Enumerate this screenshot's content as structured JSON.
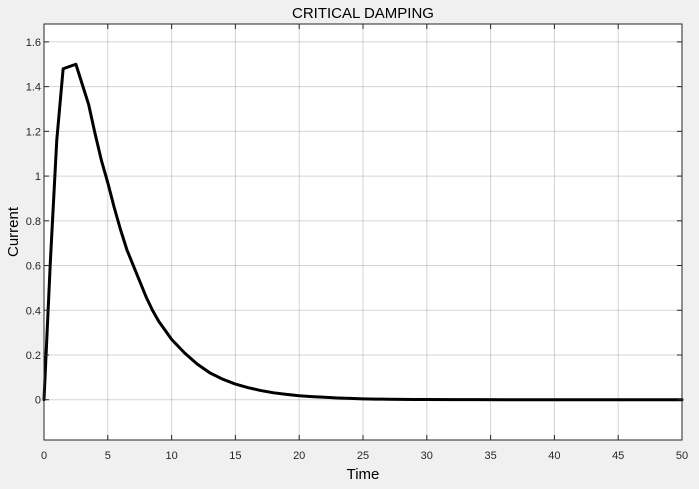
{
  "chart_data": {
    "type": "line",
    "title": "CRITICAL DAMPING",
    "xlabel": "Time",
    "ylabel": "Current",
    "xlim": [
      0,
      50
    ],
    "ylim": [
      -0.18,
      1.68
    ],
    "grid": true,
    "xticks": [
      "0",
      "5",
      "10",
      "15",
      "20",
      "25",
      "30",
      "35",
      "40",
      "45",
      "50"
    ],
    "xtick_values": [
      0,
      5,
      10,
      15,
      20,
      25,
      30,
      35,
      40,
      45,
      50
    ],
    "yticks": [
      "0",
      "0.2",
      "0.4",
      "0.6",
      "0.8",
      "1",
      "1.2",
      "1.4",
      "1.6"
    ],
    "ytick_values": [
      0,
      0.2,
      0.4,
      0.6,
      0.8,
      1.0,
      1.2,
      1.4,
      1.6
    ],
    "series": [
      {
        "color": "#000000",
        "x": [
          0,
          0.5,
          1,
          1.5,
          2,
          2.5,
          3,
          3.5,
          4,
          4.5,
          5,
          5.5,
          6,
          6.5,
          7,
          7.5,
          8,
          8.5,
          9,
          9.5,
          10,
          11,
          12,
          13,
          14,
          15,
          16,
          17,
          18,
          19,
          20,
          21,
          22,
          23,
          24,
          25,
          26,
          27,
          28,
          29,
          30,
          32,
          34,
          36,
          38,
          40,
          42,
          44,
          46,
          48,
          50
        ],
        "y": [
          0,
          0.62,
          1.16,
          1.48,
          1.49,
          1.5,
          1.41,
          1.32,
          1.19,
          1.07,
          0.97,
          0.86,
          0.76,
          0.67,
          0.6,
          0.53,
          0.46,
          0.4,
          0.35,
          0.31,
          0.27,
          0.21,
          0.16,
          0.12,
          0.092,
          0.07,
          0.054,
          0.041,
          0.031,
          0.024,
          0.018,
          0.014,
          0.011,
          0.008,
          0.006,
          0.004,
          0.003,
          0.002,
          0.0015,
          0.001,
          0.0008,
          0.0005,
          0.0003,
          0.0002,
          0.0001,
          0,
          0,
          0,
          0,
          0,
          0
        ]
      }
    ]
  }
}
